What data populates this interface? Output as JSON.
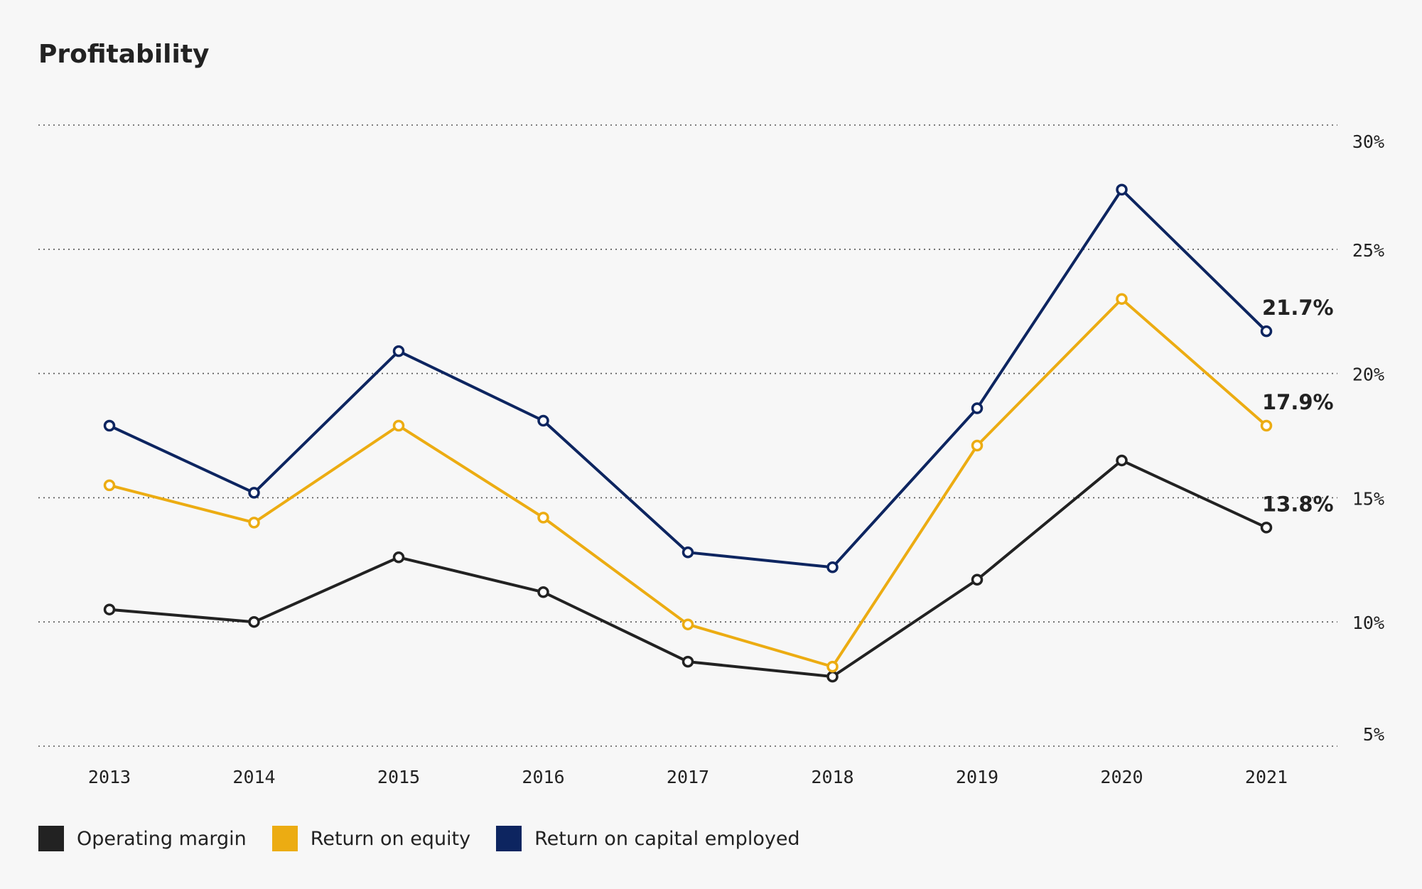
{
  "chart_data": {
    "type": "line",
    "title": "Profitability",
    "x": [
      "2013",
      "2014",
      "2015",
      "2016",
      "2017",
      "2018",
      "2019",
      "2020",
      "2021"
    ],
    "y_ticks": [
      "30%",
      "25%",
      "20%",
      "15%",
      "10%",
      "5%"
    ],
    "y_tick_values": [
      30,
      25,
      20,
      15,
      10,
      5
    ],
    "ylim": [
      5,
      30
    ],
    "grid": true,
    "legend_position": "bottom-left",
    "series": [
      {
        "name": "Operating margin",
        "color": "#222222",
        "values": [
          10.5,
          10.0,
          12.6,
          11.2,
          8.4,
          7.8,
          11.7,
          16.5,
          13.8
        ],
        "end_label": "13.8%"
      },
      {
        "name": "Return on equity",
        "color": "#ecac12",
        "values": [
          15.5,
          14.0,
          17.9,
          14.2,
          9.9,
          8.2,
          17.1,
          23.0,
          17.9
        ],
        "end_label": "17.9%"
      },
      {
        "name": "Return on capital employed",
        "color": "#0d2560",
        "values": [
          17.9,
          15.2,
          20.9,
          18.1,
          12.8,
          12.2,
          18.6,
          27.4,
          21.7
        ],
        "end_label": "21.7%"
      }
    ]
  }
}
